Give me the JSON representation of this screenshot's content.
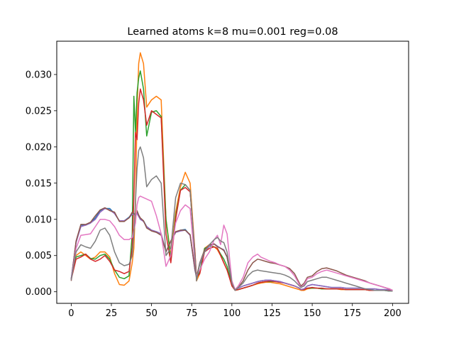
{
  "chart_data": {
    "type": "line",
    "title": "Learned atoms k=8 mu=0.001 reg=0.08",
    "xlabel": "",
    "ylabel": "",
    "xlim": [
      -9,
      210
    ],
    "ylim": [
      -0.0016,
      0.0346
    ],
    "x_ticks": [
      0,
      25,
      50,
      75,
      100,
      125,
      150,
      175,
      200
    ],
    "y_ticks": [
      0.0,
      0.005,
      0.01,
      0.015,
      0.02,
      0.025,
      0.03
    ],
    "y_tick_labels": [
      "0.000",
      "0.005",
      "0.010",
      "0.015",
      "0.020",
      "0.025",
      "0.030"
    ],
    "grid": false,
    "x": [
      0,
      3,
      6,
      9,
      12,
      15,
      18,
      21,
      24,
      27,
      30,
      33,
      36,
      38,
      39,
      40,
      41,
      42,
      43,
      45,
      47,
      50,
      53,
      56,
      59,
      62,
      65,
      68,
      71,
      74,
      77,
      78,
      80,
      83,
      86,
      89,
      91,
      93,
      95,
      97,
      100,
      102,
      104,
      107,
      110,
      113,
      116,
      118,
      121,
      124,
      127,
      130,
      133,
      136,
      139,
      142,
      143,
      145,
      147,
      150,
      153,
      156,
      159,
      162,
      165,
      168,
      171,
      174,
      177,
      180,
      183,
      186,
      189,
      192,
      195,
      198,
      200
    ],
    "series": [
      {
        "color": "#1f77b4",
        "values": [
          0.0018,
          0.0068,
          0.0092,
          0.0092,
          0.0095,
          0.0102,
          0.0112,
          0.0115,
          0.0115,
          0.0108,
          0.0098,
          0.0098,
          0.0103,
          0.0108,
          0.0108,
          0.0107,
          0.011,
          0.0105,
          0.01,
          0.0098,
          0.009,
          0.0085,
          0.0083,
          0.008,
          0.0055,
          0.007,
          0.0082,
          0.0085,
          0.0086,
          0.0078,
          0.003,
          0.002,
          0.0038,
          0.0055,
          0.0064,
          0.0066,
          0.0063,
          0.006,
          0.0058,
          0.0048,
          0.0012,
          0.0003,
          0.0005,
          0.0008,
          0.001,
          0.0012,
          0.0014,
          0.0015,
          0.0016,
          0.0016,
          0.0015,
          0.0014,
          0.0012,
          0.001,
          0.0008,
          0.0005,
          0.0003,
          0.0004,
          0.0008,
          0.001,
          0.0009,
          0.0008,
          0.0007,
          0.0006,
          0.0006,
          0.0006,
          0.0005,
          0.0005,
          0.0005,
          0.0005,
          0.0004,
          0.0004,
          0.0004,
          0.0003,
          0.0003,
          0.0003,
          0.0002
        ]
      },
      {
        "color": "#ff7f0e",
        "values": [
          0.0018,
          0.005,
          0.0055,
          0.005,
          0.0045,
          0.0048,
          0.0055,
          0.0055,
          0.0048,
          0.0025,
          0.001,
          0.0009,
          0.0015,
          0.004,
          0.006,
          0.012,
          0.025,
          0.0315,
          0.033,
          0.0315,
          0.0255,
          0.0265,
          0.027,
          0.0265,
          0.01,
          0.005,
          0.011,
          0.0145,
          0.0165,
          0.015,
          0.0055,
          0.0015,
          0.0025,
          0.006,
          0.0065,
          0.0062,
          0.0058,
          0.005,
          0.004,
          0.003,
          0.001,
          0.0002,
          0.0003,
          0.0005,
          0.0007,
          0.0009,
          0.0011,
          0.0012,
          0.0013,
          0.0013,
          0.0012,
          0.0011,
          0.0009,
          0.0007,
          0.0005,
          0.0003,
          0.0002,
          0.0002,
          0.0004,
          0.0005,
          0.0005,
          0.0004,
          0.0004,
          0.0004,
          0.0004,
          0.0003,
          0.0003,
          0.0003,
          0.0003,
          0.0003,
          0.0003,
          0.0002,
          0.0002,
          0.0002,
          0.0002,
          0.0002,
          0.0001
        ]
      },
      {
        "color": "#2ca02c",
        "values": [
          0.0018,
          0.0048,
          0.005,
          0.0052,
          0.0046,
          0.0045,
          0.005,
          0.0052,
          0.0045,
          0.003,
          0.002,
          0.0018,
          0.0022,
          0.008,
          0.027,
          0.022,
          0.0275,
          0.0295,
          0.0305,
          0.028,
          0.0215,
          0.0248,
          0.025,
          0.0242,
          0.01,
          0.0045,
          0.0105,
          0.014,
          0.0148,
          0.014,
          0.005,
          0.0018,
          0.0028,
          0.006,
          0.0063,
          0.0062,
          0.006,
          0.0052,
          0.0045,
          0.0035,
          0.001,
          0.0002,
          0.0003,
          0.0005,
          0.0007,
          0.0009,
          0.0012,
          0.0013,
          0.0014,
          0.0014,
          0.0014,
          0.0013,
          0.0012,
          0.001,
          0.0008,
          0.0005,
          0.0003,
          0.0003,
          0.0005,
          0.0005,
          0.0005,
          0.0004,
          0.0004,
          0.0004,
          0.0004,
          0.0004,
          0.0003,
          0.0003,
          0.0003,
          0.0003,
          0.0003,
          0.0002,
          0.0002,
          0.0002,
          0.0002,
          0.0001,
          0.0001
        ]
      },
      {
        "color": "#d62728",
        "values": [
          0.0017,
          0.0045,
          0.0048,
          0.0052,
          0.0045,
          0.0042,
          0.0045,
          0.005,
          0.0042,
          0.003,
          0.0028,
          0.0025,
          0.0028,
          0.006,
          0.013,
          0.022,
          0.021,
          0.026,
          0.028,
          0.0265,
          0.023,
          0.025,
          0.0245,
          0.024,
          0.008,
          0.004,
          0.01,
          0.014,
          0.0144,
          0.0138,
          0.0055,
          0.002,
          0.0025,
          0.0055,
          0.006,
          0.0062,
          0.006,
          0.005,
          0.004,
          0.003,
          0.0008,
          0.0002,
          0.0003,
          0.0005,
          0.0007,
          0.0009,
          0.0012,
          0.0013,
          0.0014,
          0.0015,
          0.0014,
          0.0013,
          0.0012,
          0.001,
          0.0008,
          0.0005,
          0.0003,
          0.0003,
          0.0005,
          0.0006,
          0.0005,
          0.0005,
          0.0004,
          0.0004,
          0.0004,
          0.0004,
          0.0003,
          0.0003,
          0.0003,
          0.0003,
          0.0003,
          0.0002,
          0.0002,
          0.0002,
          0.0002,
          0.0002,
          0.0001
        ]
      },
      {
        "color": "#9467bd",
        "values": [
          0.0018,
          0.0068,
          0.009,
          0.0092,
          0.0095,
          0.01,
          0.011,
          0.0115,
          0.0113,
          0.0108,
          0.0098,
          0.0098,
          0.0102,
          0.0107,
          0.0107,
          0.0106,
          0.0108,
          0.0104,
          0.01,
          0.0097,
          0.009,
          0.0085,
          0.0083,
          0.008,
          0.0055,
          0.007,
          0.0082,
          0.0084,
          0.0085,
          0.0078,
          0.003,
          0.002,
          0.0038,
          0.0055,
          0.0063,
          0.0066,
          0.0063,
          0.006,
          0.0058,
          0.0048,
          0.0012,
          0.0003,
          0.0005,
          0.0008,
          0.001,
          0.0012,
          0.0014,
          0.0015,
          0.0016,
          0.0016,
          0.0015,
          0.0014,
          0.0012,
          0.001,
          0.0008,
          0.0005,
          0.0003,
          0.0004,
          0.0008,
          0.001,
          0.0009,
          0.0008,
          0.0007,
          0.0006,
          0.0006,
          0.0006,
          0.0005,
          0.0005,
          0.0005,
          0.0005,
          0.0004,
          0.0004,
          0.0004,
          0.0003,
          0.0003,
          0.0003,
          0.0002
        ]
      },
      {
        "color": "#8c564b",
        "values": [
          0.0015,
          0.007,
          0.0093,
          0.0093,
          0.0096,
          0.0105,
          0.0113,
          0.0116,
          0.0112,
          0.011,
          0.0097,
          0.0097,
          0.0102,
          0.011,
          0.0108,
          0.0105,
          0.0112,
          0.0106,
          0.0102,
          0.0098,
          0.0088,
          0.0084,
          0.0082,
          0.0078,
          0.0055,
          0.007,
          0.0083,
          0.0085,
          0.0085,
          0.0079,
          0.0032,
          0.002,
          0.004,
          0.0058,
          0.0065,
          0.0066,
          0.0062,
          0.006,
          0.0057,
          0.0048,
          0.0012,
          0.0002,
          0.0006,
          0.0015,
          0.003,
          0.004,
          0.0045,
          0.0044,
          0.0042,
          0.004,
          0.0039,
          0.0037,
          0.0035,
          0.0032,
          0.0025,
          0.0012,
          0.0008,
          0.0012,
          0.002,
          0.0022,
          0.0028,
          0.0032,
          0.0033,
          0.0031,
          0.0029,
          0.0026,
          0.0023,
          0.0021,
          0.0019,
          0.0017,
          0.0015,
          0.0012,
          0.001,
          0.0008,
          0.0006,
          0.0004,
          0.0002
        ]
      },
      {
        "color": "#e377c2",
        "values": [
          0.0016,
          0.006,
          0.0078,
          0.0079,
          0.008,
          0.009,
          0.01,
          0.01,
          0.0098,
          0.009,
          0.0078,
          0.0072,
          0.0072,
          0.0075,
          0.0085,
          0.0095,
          0.012,
          0.013,
          0.0132,
          0.013,
          0.0128,
          0.0125,
          0.0105,
          0.008,
          0.0035,
          0.005,
          0.0095,
          0.0112,
          0.012,
          0.0115,
          0.004,
          0.0022,
          0.003,
          0.0045,
          0.0055,
          0.0072,
          0.0078,
          0.0065,
          0.0092,
          0.008,
          0.0015,
          0.0003,
          0.0008,
          0.002,
          0.004,
          0.0048,
          0.0052,
          0.0048,
          0.0045,
          0.0042,
          0.004,
          0.0037,
          0.0035,
          0.003,
          0.0022,
          0.001,
          0.0006,
          0.001,
          0.0018,
          0.002,
          0.0025,
          0.0028,
          0.003,
          0.0028,
          0.0026,
          0.0024,
          0.0022,
          0.002,
          0.0018,
          0.0016,
          0.0014,
          0.0012,
          0.001,
          0.0008,
          0.0006,
          0.0004,
          0.0002
        ]
      },
      {
        "color": "#7f7f7f",
        "values": [
          0.0016,
          0.0055,
          0.0065,
          0.0062,
          0.006,
          0.007,
          0.0085,
          0.0088,
          0.0078,
          0.0055,
          0.004,
          0.0036,
          0.0038,
          0.005,
          0.008,
          0.0125,
          0.017,
          0.0195,
          0.02,
          0.0185,
          0.0145,
          0.0155,
          0.016,
          0.015,
          0.005,
          0.006,
          0.013,
          0.015,
          0.0148,
          0.014,
          0.005,
          0.0015,
          0.004,
          0.0055,
          0.0065,
          0.0072,
          0.0075,
          0.007,
          0.0068,
          0.0055,
          0.0012,
          0.0002,
          0.0006,
          0.0012,
          0.0022,
          0.0028,
          0.003,
          0.0029,
          0.0028,
          0.0027,
          0.0026,
          0.0025,
          0.0023,
          0.002,
          0.0015,
          0.0008,
          0.0006,
          0.0008,
          0.0014,
          0.0016,
          0.0018,
          0.002,
          0.002,
          0.0018,
          0.0016,
          0.0014,
          0.0012,
          0.001,
          0.0008,
          0.0006,
          0.0004,
          0.0003,
          0.0002,
          0.0002,
          0.0002,
          0.0001,
          0.0001
        ]
      }
    ]
  }
}
